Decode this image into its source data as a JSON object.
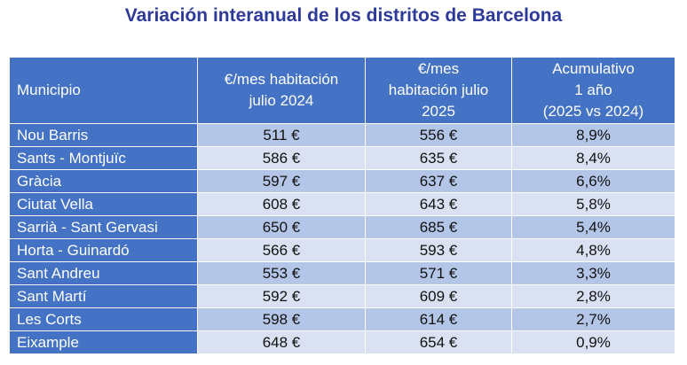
{
  "title": "Variación interanual de los distritos de Barcelona",
  "colors": {
    "title": "#2e3a9a",
    "header_bg": "#4472c4",
    "row_dark": "#b4c6e7",
    "row_light": "#d9e1f2"
  },
  "table": {
    "headers": [
      [
        "Municipio"
      ],
      [
        "€/mes habitación",
        "julio 2024"
      ],
      [
        "€/mes",
        "habitación julio",
        "2025"
      ],
      [
        "Acumulativo",
        "1 año",
        "(2025 vs 2024)"
      ]
    ],
    "rows": [
      [
        "Nou Barris",
        "511 €",
        "556 €",
        "8,9%"
      ],
      [
        "Sants - Montjuïc",
        "586 €",
        "635 €",
        "8,4%"
      ],
      [
        "Gràcia",
        "597 €",
        "637 €",
        "6,6%"
      ],
      [
        "Ciutat Vella",
        "608 €",
        "643 €",
        "5,8%"
      ],
      [
        "Sarrià - Sant Gervasi",
        "650 €",
        "685 €",
        "5,4%"
      ],
      [
        "Horta - Guinardó",
        "566 €",
        "593 €",
        "4,8%"
      ],
      [
        "Sant Andreu",
        "553 €",
        "571 €",
        "3,3%"
      ],
      [
        "Sant Martí",
        "592 €",
        "609 €",
        "2,8%"
      ],
      [
        "Les Corts",
        "598 €",
        "614 €",
        "2,7%"
      ],
      [
        "Eixample",
        "648 €",
        "654 €",
        "0,9%"
      ]
    ]
  },
  "chart_data": {
    "type": "table",
    "title": "Variación interanual de los distritos de Barcelona",
    "columns": [
      "Municipio",
      "€/mes habitación julio 2024",
      "€/mes habitación julio 2025",
      "Acumulativo 1 año (2025 vs 2024)"
    ],
    "categories": [
      "Nou Barris",
      "Sants - Montjuïc",
      "Gràcia",
      "Ciutat Vella",
      "Sarrià - Sant Gervasi",
      "Horta - Guinardó",
      "Sant Andreu",
      "Sant Martí",
      "Les Corts",
      "Eixample"
    ],
    "series": [
      {
        "name": "€/mes habitación julio 2024",
        "values": [
          511,
          586,
          597,
          608,
          650,
          566,
          553,
          592,
          598,
          648
        ]
      },
      {
        "name": "€/mes habitación julio 2025",
        "values": [
          556,
          635,
          637,
          643,
          685,
          593,
          571,
          609,
          614,
          654
        ]
      },
      {
        "name": "Acumulativo 1 año (2025 vs 2024)",
        "values": [
          8.9,
          8.4,
          6.6,
          5.8,
          5.4,
          4.8,
          3.3,
          2.8,
          2.7,
          0.9
        ]
      }
    ]
  }
}
